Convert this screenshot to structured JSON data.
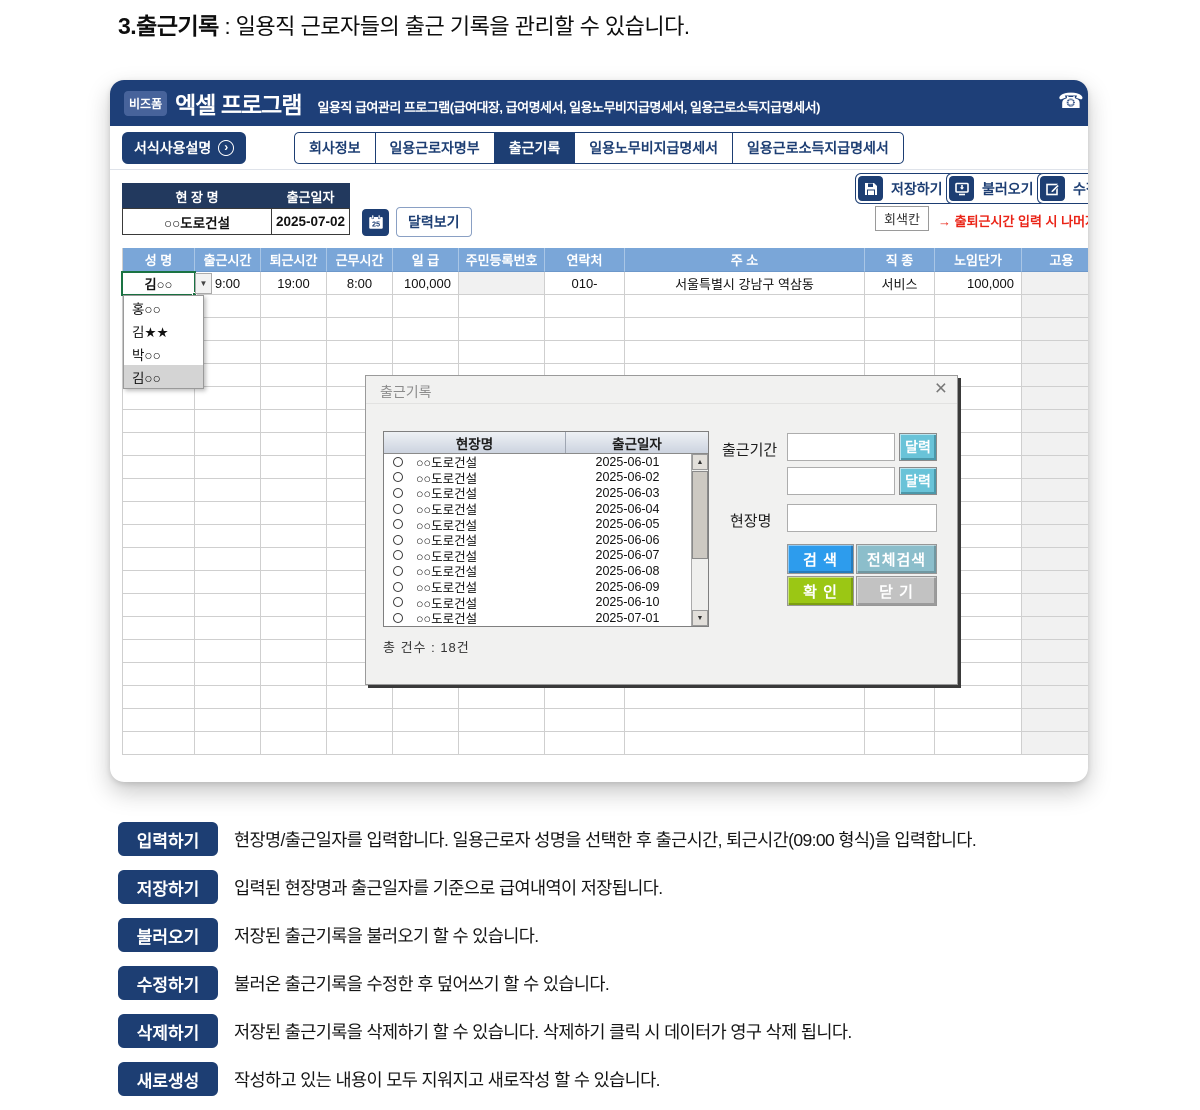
{
  "page": {
    "heading_bold": "3.출근기록",
    "heading_rest": " : 일용직 근로자들의 출근 기록을 관리할 수 있습니다."
  },
  "app": {
    "brand": "비즈폼",
    "title": "엑셀 프로그램",
    "subtitle": "일용직 급여관리 프로그램(급여대장, 급여명세서, 일용노무비지급명세서, 일용근로소득지급명세서)",
    "phone_icon": "phone-icon"
  },
  "nav": {
    "guide": "서식사용설명",
    "tabs": [
      {
        "label": "회사정보",
        "active": false
      },
      {
        "label": "일용근로자명부",
        "active": false
      },
      {
        "label": "출근기록",
        "active": true
      },
      {
        "label": "일용노무비지급명세서",
        "active": false
      },
      {
        "label": "일용근로소득지급명세서",
        "active": false
      }
    ]
  },
  "toolbar": {
    "save": "저장하기",
    "load": "불러오기",
    "edit": "수정하기"
  },
  "site_form": {
    "site_header": "현 장 명",
    "date_header": "출근일자",
    "site_value": "○○도로건설",
    "date_value": "2025-07-02",
    "calendar_button": "달력보기",
    "gray_cell_button": "회색칸",
    "warning": "→ 출퇴근시간 입력 시 나머지"
  },
  "table": {
    "headers": [
      "성 명",
      "출근시간",
      "퇴근시간",
      "근무시간",
      "일 급",
      "주민등록번호",
      "연락처",
      "주 소",
      "직 종",
      "노임단가",
      "고용"
    ],
    "row": [
      "김○○",
      "9:00",
      "19:00",
      "8:00",
      "100,000",
      "",
      "010-",
      "서울특별시 강남구 역삼동",
      "서비스",
      "100,000",
      ""
    ],
    "empty_rows": 20
  },
  "dropdown": {
    "options": [
      "홍○○",
      "김★★",
      "박○○",
      "김○○"
    ],
    "selected_index": 3
  },
  "modal": {
    "title": "출근기록",
    "close_icon": "×",
    "list_headers": [
      "현장명",
      "출근일자"
    ],
    "records": [
      {
        "site": "○○도로건설",
        "date": "2025-06-01"
      },
      {
        "site": "○○도로건설",
        "date": "2025-06-02"
      },
      {
        "site": "○○도로건설",
        "date": "2025-06-03"
      },
      {
        "site": "○○도로건설",
        "date": "2025-06-04"
      },
      {
        "site": "○○도로건설",
        "date": "2025-06-05"
      },
      {
        "site": "○○도로건설",
        "date": "2025-06-06"
      },
      {
        "site": "○○도로건설",
        "date": "2025-06-07"
      },
      {
        "site": "○○도로건설",
        "date": "2025-06-08"
      },
      {
        "site": "○○도로건설",
        "date": "2025-06-09"
      },
      {
        "site": "○○도로건설",
        "date": "2025-06-10"
      },
      {
        "site": "○○도로건설",
        "date": "2025-07-01"
      }
    ],
    "total": "총 건수 : 18건",
    "period_label": "출근기간",
    "site_label": "현장명",
    "calendar_button": "달력",
    "search": "검 색",
    "search_all": "전체검색",
    "confirm": "확 인",
    "close": "닫 기"
  },
  "help": {
    "items": [
      {
        "badge": "입력하기",
        "text": "현장명/출근일자를 입력합니다. 일용근로자 성명을 선택한 후 출근시간, 퇴근시간(09:00 형식)을 입력합니다."
      },
      {
        "badge": "저장하기",
        "text": "입력된 현장명과 출근일자를 기준으로 급여내역이 저장됩니다."
      },
      {
        "badge": "불러오기",
        "text": "저장된 출근기록을 불러오기 할 수 있습니다."
      },
      {
        "badge": "수정하기",
        "text": "불러온 출근기록을 수정한 후 덮어쓰기 할 수 있습니다."
      },
      {
        "badge": "삭제하기",
        "text": "저장된 출근기록을 삭제하기 할 수 있습니다. 삭제하기 클릭 시 데이터가 영구 삭제 됩니다."
      },
      {
        "badge": "새로생성",
        "text": "작성하고 있는 내용이 모두 지워지고 새로작성 할 수 있습니다."
      }
    ]
  },
  "colors": {
    "navy": "#1d3e73",
    "table_header_blue": "#7aa6d8",
    "warning_red": "#ea2417",
    "search_blue": "#2d9ced",
    "calendar_cyan": "#69c3d8",
    "search_all_teal": "#8cbecb",
    "confirm_green": "#9bc714",
    "close_gray": "#c2c2c2",
    "excel_selection_green": "#1a7343"
  }
}
